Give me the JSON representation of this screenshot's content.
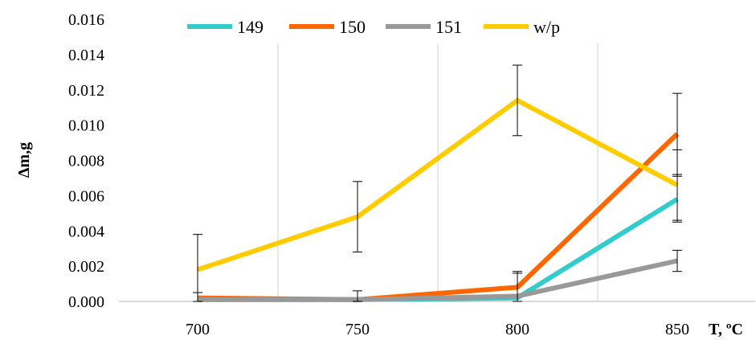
{
  "chart_data": {
    "type": "line",
    "categories": [
      "700",
      "750",
      "800",
      "850"
    ],
    "series": [
      {
        "name": "149",
        "color": "#33CCCC",
        "values": [
          0.0001,
          0.0001,
          0.0002,
          0.0058
        ],
        "error": [
          null,
          null,
          null,
          0.0013
        ]
      },
      {
        "name": "150",
        "color": "#FF6600",
        "values": [
          0.0002,
          0.0001,
          0.0008,
          0.0095
        ],
        "error": [
          0.0003,
          0.0005,
          0.0009,
          0.0023
        ]
      },
      {
        "name": "151",
        "color": "#999999",
        "values": [
          0.0001,
          0.0001,
          0.0003,
          0.0023
        ],
        "error": [
          null,
          null,
          0.0013,
          0.0006
        ]
      },
      {
        "name": "w/p",
        "color": "#FFCC00",
        "values": [
          0.0018,
          0.0048,
          0.0114,
          0.0066
        ],
        "error": [
          0.002,
          0.002,
          0.002,
          0.002
        ]
      }
    ],
    "y_ticks": [
      "0.000",
      "0.002",
      "0.004",
      "0.006",
      "0.008",
      "0.010",
      "0.012",
      "0.014",
      "0.016"
    ],
    "ylim": [
      0,
      0.016
    ],
    "xlabel": "T, ºC",
    "ylabel": "Δm,g",
    "grid": "vertical",
    "legend": "top"
  }
}
